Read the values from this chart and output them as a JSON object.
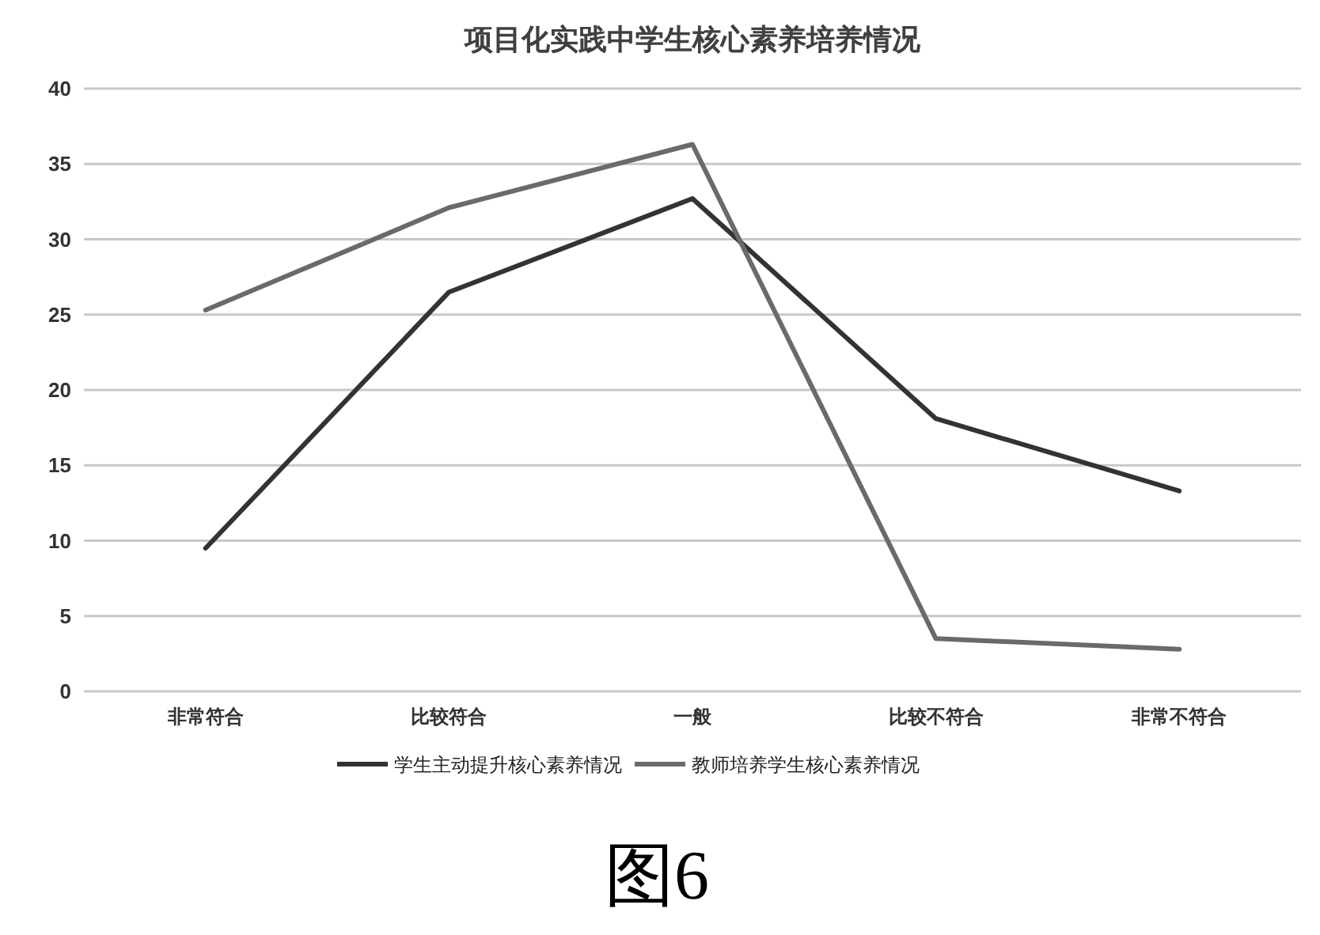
{
  "chart_data": {
    "type": "line",
    "title": "项目化实践中学生核心素养培养情况",
    "categories": [
      "非常符合",
      "比较符合",
      "一般",
      "比较不符合",
      "非常不符合"
    ],
    "series": [
      {
        "name": "学生主动提升核心素养情况",
        "color": "#333333",
        "values": [
          9.5,
          26.5,
          32.7,
          18.1,
          13.3
        ]
      },
      {
        "name": "教师培养学生核心素养情况",
        "color": "#6a6a6a",
        "values": [
          25.3,
          32.1,
          36.3,
          3.5,
          2.8
        ]
      }
    ],
    "ylim": [
      0,
      40
    ],
    "yticks": [
      0,
      5,
      10,
      15,
      20,
      25,
      30,
      35,
      40
    ],
    "grid": "y",
    "legend": "bottom",
    "line_style": "solid",
    "annotations": [
      "图6"
    ]
  }
}
